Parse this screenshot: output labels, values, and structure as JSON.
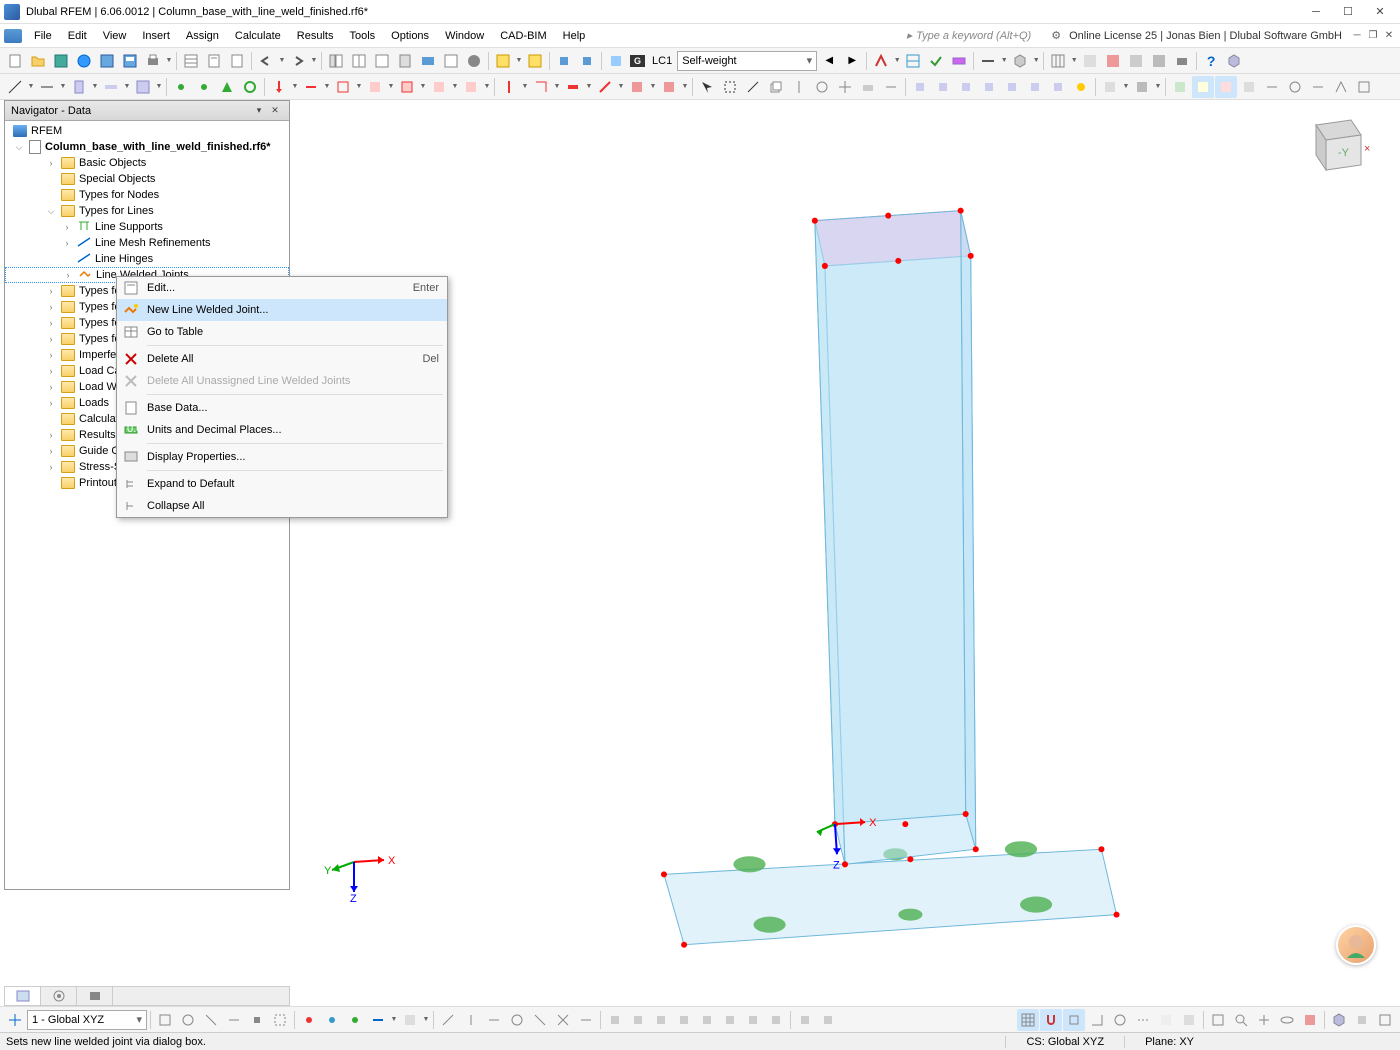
{
  "title": "Dlubal RFEM | 6.06.0012 | Column_base_with_line_weld_finished.rf6*",
  "menu": [
    "File",
    "Edit",
    "View",
    "Insert",
    "Assign",
    "Calculate",
    "Results",
    "Tools",
    "Options",
    "Window",
    "CAD-BIM",
    "Help"
  ],
  "keyword_placeholder": "Type a keyword (Alt+Q)",
  "license": "Online License 25 | Jonas Bien | Dlubal Software GmbH",
  "lc_badge": "G",
  "lc_code": "LC1",
  "lc_combo": "Self-weight",
  "navigator": {
    "title": "Navigator - Data",
    "root_app": "RFEM",
    "root_file": "Column_base_with_line_weld_finished.rf6*",
    "items": [
      {
        "label": "Basic Objects",
        "indent": 2,
        "exp": ">",
        "icon": "folder"
      },
      {
        "label": "Special Objects",
        "indent": 2,
        "exp": "",
        "icon": "folder"
      },
      {
        "label": "Types for Nodes",
        "indent": 2,
        "exp": "",
        "icon": "folder"
      },
      {
        "label": "Types for Lines",
        "indent": 2,
        "exp": "v",
        "icon": "folder"
      },
      {
        "label": "Line Supports",
        "indent": 3,
        "exp": ">",
        "icon": "support"
      },
      {
        "label": "Line Mesh Refinements",
        "indent": 3,
        "exp": ">",
        "icon": "line"
      },
      {
        "label": "Line Hinges",
        "indent": 3,
        "exp": "",
        "icon": "line"
      },
      {
        "label": "Line Welded Joints",
        "indent": 3,
        "exp": ">",
        "icon": "weld",
        "selected": true
      },
      {
        "label": "Types for Members",
        "indent": 2,
        "exp": ">",
        "icon": "folder"
      },
      {
        "label": "Types for Surfaces",
        "indent": 2,
        "exp": ">",
        "icon": "folder"
      },
      {
        "label": "Types for Solids",
        "indent": 2,
        "exp": ">",
        "icon": "folder"
      },
      {
        "label": "Types for Special Objects",
        "indent": 2,
        "exp": ">",
        "icon": "folder"
      },
      {
        "label": "Imperfections",
        "indent": 2,
        "exp": ">",
        "icon": "folder"
      },
      {
        "label": "Load Cases and Combinations",
        "indent": 2,
        "exp": ">",
        "icon": "folder"
      },
      {
        "label": "Load Wizards",
        "indent": 2,
        "exp": ">",
        "icon": "folder"
      },
      {
        "label": "Loads",
        "indent": 2,
        "exp": ">",
        "icon": "folder"
      },
      {
        "label": "Calculation Diagrams",
        "indent": 2,
        "exp": "",
        "icon": "folder"
      },
      {
        "label": "Results",
        "indent": 2,
        "exp": ">",
        "icon": "folder"
      },
      {
        "label": "Guide Objects",
        "indent": 2,
        "exp": ">",
        "icon": "folder"
      },
      {
        "label": "Stress-Strain Analysis",
        "indent": 2,
        "exp": ">",
        "icon": "folder"
      },
      {
        "label": "Printout Reports",
        "indent": 2,
        "exp": "",
        "icon": "folder"
      }
    ]
  },
  "context_menu": [
    {
      "label": "Edit...",
      "shortcut": "Enter",
      "icon": "edit"
    },
    {
      "label": "New Line Welded Joint...",
      "icon": "new",
      "highlight": true
    },
    {
      "label": "Go to Table",
      "icon": "table"
    },
    {
      "sep": true
    },
    {
      "label": "Delete All",
      "shortcut": "Del",
      "icon": "delete"
    },
    {
      "label": "Delete All Unassigned Line Welded Joints",
      "icon": "delete-gray",
      "disabled": true
    },
    {
      "sep": true
    },
    {
      "label": "Base Data...",
      "icon": "base"
    },
    {
      "label": "Units and Decimal Places...",
      "icon": "units"
    },
    {
      "sep": true
    },
    {
      "label": "Display Properties...",
      "icon": "display"
    },
    {
      "sep": true
    },
    {
      "label": "Expand to Default",
      "icon": "expand"
    },
    {
      "label": "Collapse All",
      "icon": "collapse"
    }
  ],
  "plane_combo": "1 - Global XYZ",
  "status": {
    "left": "Sets new line welded joint via dialog box.",
    "cs": "CS: Global XYZ",
    "plane": "Plane: XY"
  },
  "model": {
    "column_color": "#bde3f5",
    "column_border": "#6fb8dc",
    "top_face_color": "#f0c0e8",
    "plate_color": "#cfe9f7",
    "node_color": "#ff0000",
    "support_color": "#4caf50",
    "background": "#ffffff"
  },
  "axis": {
    "x_color": "#ff0000",
    "y_color": "#00aa00",
    "z_color": "#0000ff"
  }
}
